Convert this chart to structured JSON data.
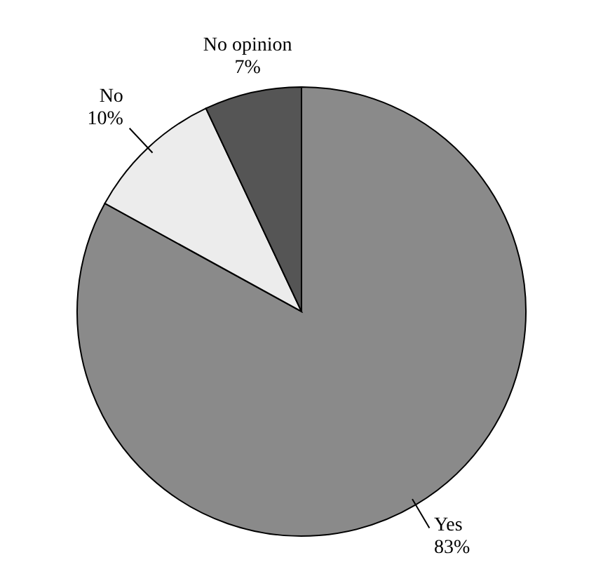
{
  "chart_data": {
    "type": "pie",
    "categories": [
      "Yes",
      "No",
      "No opinion"
    ],
    "values": [
      83,
      10,
      7
    ],
    "colors": [
      "#8a8a8a",
      "#ececec",
      "#555555"
    ],
    "value_labels": [
      "83%",
      "10%",
      "7%"
    ]
  }
}
